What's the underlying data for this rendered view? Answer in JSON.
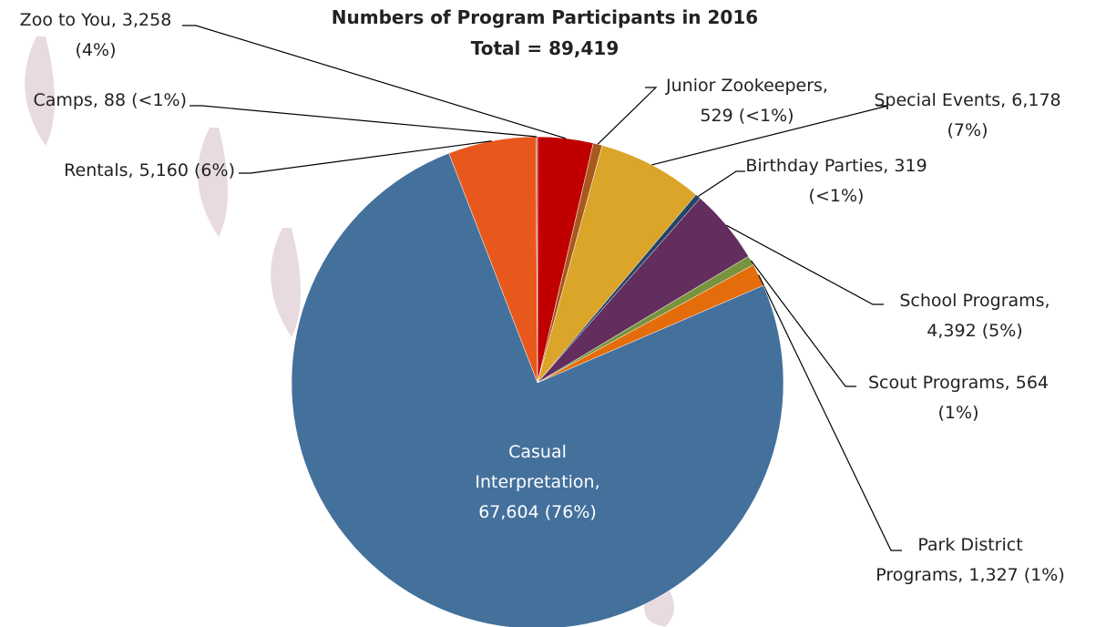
{
  "chart_data": {
    "type": "pie",
    "title": "Numbers of Program Participants in 2016",
    "subtitle": "Total = 89,419",
    "labels": [
      "Zoo to You, 3,258\n(4%)",
      "Junior Zookeepers,\n529 (<1%)",
      "Special Events, 6,178\n(7%)",
      "Birthday Parties, 319\n(<1%)",
      "School Programs,\n4,392 (5%)",
      "Scout Programs, 564\n(1%)",
      "Park District\nPrograms, 1,327 (1%)",
      "Casual\nInterpretation,\n67,604 (76%)",
      "Rentals, 5,160 (6%)",
      "Camps, 88 (<1%)"
    ],
    "values": [
      3258,
      529,
      6178,
      319,
      4392,
      564,
      1327,
      67604,
      5160,
      88
    ],
    "colors": [
      "#c00000",
      "#a9581e",
      "#daa528",
      "#254466",
      "#632d5e",
      "#77933c",
      "#e46c0a",
      "#44709c",
      "#e8581c",
      "#c0504d"
    ]
  }
}
